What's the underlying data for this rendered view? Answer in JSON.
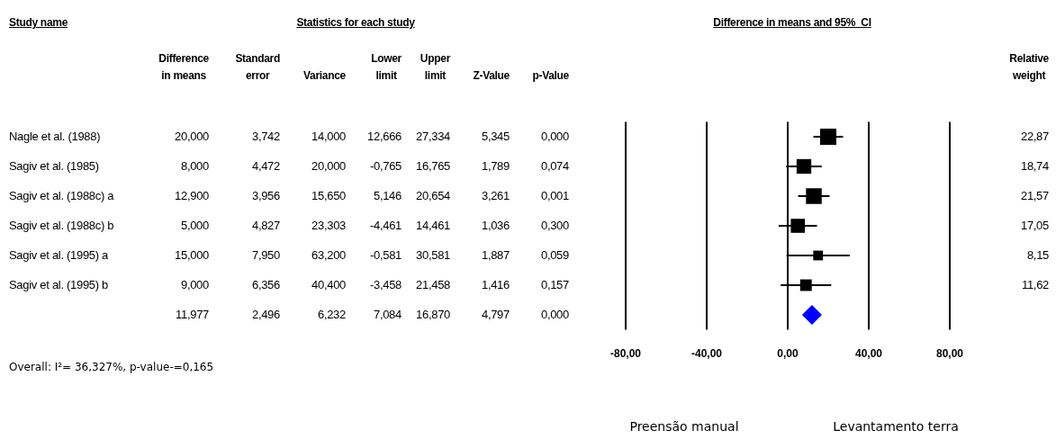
{
  "chart_data": [
    {
      "type": "other",
      "title": "Statistics for each study",
      "ylabel": "Study name",
      "categories": [
        "Difference\nin means",
        "Standard\nerror",
        "Variance",
        "Lower\nlimit",
        "Upper\nlimit",
        "Z-Value",
        "p-Value",
        "Relative\nweight"
      ],
      "y_categories": [
        "Nagle et al. (1988)",
        "Sagiv et al. (1985)",
        "Sagiv et al. (1988c) a",
        "Sagiv et al. (1988c) b",
        "Sagiv et al. (1995) a",
        "Sagiv et al. (1995) b",
        null
      ],
      "cell_labels": [
        [
          "20,000",
          "3,742",
          "14,000",
          "12,666",
          "27,334",
          "5,345",
          "0,000",
          "22,87"
        ],
        [
          "8,000",
          "4,472",
          "20,000",
          "-0,765",
          "16,765",
          "1,789",
          "0,074",
          "18,74"
        ],
        [
          "12,900",
          "3,956",
          "15,650",
          "5,146",
          "20,654",
          "3,261",
          "0,001",
          "21,57"
        ],
        [
          "5,000",
          "4,827",
          "23,303",
          "-4,461",
          "14,461",
          "1,036",
          "0,300",
          "17,05"
        ],
        [
          "15,000",
          "7,950",
          "63,200",
          "-0,581",
          "30,581",
          "1,887",
          "0,059",
          "8,15"
        ],
        [
          "9,000",
          "6,356",
          "40,400",
          "-3,458",
          "21,458",
          "1,416",
          "0,157",
          "11,62"
        ],
        [
          "11,977",
          "2,496",
          "6,232",
          "7,084",
          "16,870",
          "4,797",
          "0,000",
          null
        ]
      ],
      "annotations": [
        "Overall: I²= 36,327%, p-value-=0,165"
      ]
    },
    {
      "type": "scatter",
      "orientation": "horizontal",
      "title": "Difference in means and 95%  CI",
      "categories": [
        null,
        null,
        null,
        null,
        null,
        null,
        null
      ],
      "series": [
        {
          "marker": "square",
          "color": "#000000",
          "values": [
            20.0,
            8.0,
            12.9,
            5.0,
            15.0,
            9.0,
            null
          ],
          "sizes": [
            1,
            0.82,
            0.94,
            0.75,
            0.36,
            0.51,
            null
          ],
          "errors": [
            7.334,
            8.765,
            7.754,
            9.461,
            15.581,
            12.458,
            null
          ]
        },
        {
          "marker": "diamond",
          "color": "#0000ff",
          "values": [
            null,
            null,
            null,
            null,
            null,
            null,
            11.977
          ]
        }
      ],
      "xlim": [
        -80,
        80
      ],
      "xticks": [
        {
          "value": -80,
          "label": "-80,00"
        },
        {
          "value": -40,
          "label": "-40,00"
        },
        {
          "value": 0,
          "label": "0,00"
        },
        {
          "value": 40,
          "label": "40,00"
        },
        {
          "value": 80,
          "label": "80,00"
        }
      ],
      "grid": "x",
      "annotations": [
        "Preensão manual",
        "Levantamento terra"
      ]
    }
  ]
}
